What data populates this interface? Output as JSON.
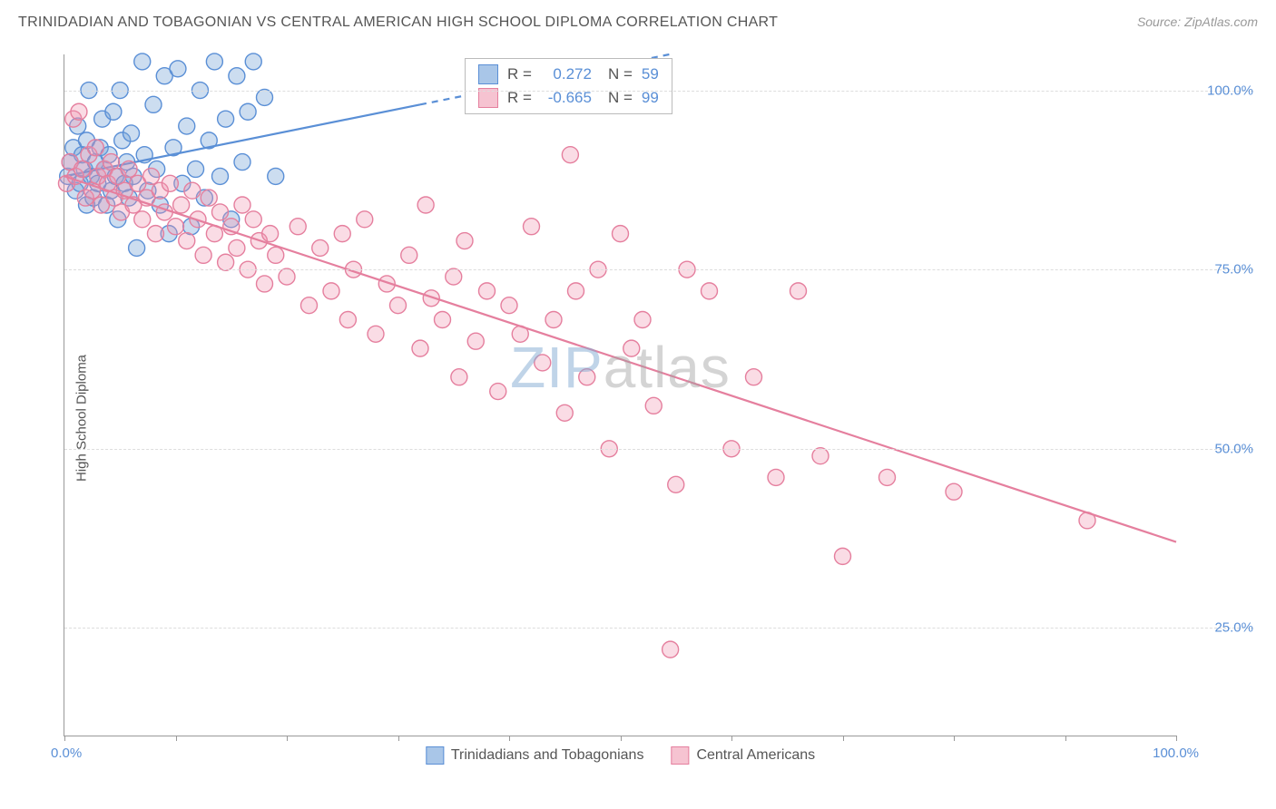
{
  "title": "TRINIDADIAN AND TOBAGONIAN VS CENTRAL AMERICAN HIGH SCHOOL DIPLOMA CORRELATION CHART",
  "source": "Source: ZipAtlas.com",
  "ylabel": "High School Diploma",
  "watermark_zip": "ZIP",
  "watermark_atlas": "atlas",
  "chart": {
    "type": "scatter",
    "background_color": "#ffffff",
    "grid_color": "#dddddd",
    "axis_color": "#999999",
    "xlim": [
      0,
      100
    ],
    "ylim": [
      10,
      105
    ],
    "x_ticks": [
      0,
      10,
      20,
      30,
      40,
      50,
      60,
      70,
      80,
      90,
      100
    ],
    "x_tick_labels": {
      "0": "0.0%",
      "100": "100.0%"
    },
    "y_gridlines": [
      25,
      50,
      75,
      100
    ],
    "y_tick_labels": {
      "25": "25.0%",
      "50": "50.0%",
      "75": "75.0%",
      "100": "100.0%"
    },
    "marker_radius": 9,
    "marker_stroke_width": 1.4,
    "line_width": 2.2,
    "title_fontsize": 16,
    "label_fontsize": 15,
    "tick_label_color": "#5a8fd6",
    "series": [
      {
        "name": "Trinidadians and Tobagonians",
        "fill_color": "rgba(120,165,215,0.38)",
        "stroke_color": "#5a8fd6",
        "swatch_fill": "#a9c6e8",
        "swatch_border": "#5a8fd6",
        "R": "0.272",
        "N": "59",
        "trend": {
          "x1": 0,
          "y1": 88,
          "x2": 32,
          "y2": 98,
          "extrapolate_to_x": 100
        },
        "points": [
          [
            0.3,
            88
          ],
          [
            0.5,
            90
          ],
          [
            0.8,
            92
          ],
          [
            1,
            86
          ],
          [
            1.2,
            95
          ],
          [
            1.4,
            87
          ],
          [
            1.6,
            91
          ],
          [
            1.8,
            89
          ],
          [
            2,
            93
          ],
          [
            2,
            84
          ],
          [
            2.2,
            100
          ],
          [
            2.4,
            88
          ],
          [
            2.6,
            85
          ],
          [
            2.8,
            90
          ],
          [
            3,
            87
          ],
          [
            3.2,
            92
          ],
          [
            3.4,
            96
          ],
          [
            3.6,
            89
          ],
          [
            3.8,
            84
          ],
          [
            4,
            91
          ],
          [
            4.2,
            86
          ],
          [
            4.4,
            97
          ],
          [
            4.6,
            88
          ],
          [
            4.8,
            82
          ],
          [
            5,
            100
          ],
          [
            5.2,
            93
          ],
          [
            5.4,
            87
          ],
          [
            5.6,
            90
          ],
          [
            5.8,
            85
          ],
          [
            6,
            94
          ],
          [
            6.2,
            88
          ],
          [
            6.5,
            78
          ],
          [
            7,
            104
          ],
          [
            7.2,
            91
          ],
          [
            7.5,
            86
          ],
          [
            8,
            98
          ],
          [
            8.3,
            89
          ],
          [
            8.6,
            84
          ],
          [
            9,
            102
          ],
          [
            9.4,
            80
          ],
          [
            9.8,
            92
          ],
          [
            10.2,
            103
          ],
          [
            10.6,
            87
          ],
          [
            11,
            95
          ],
          [
            11.4,
            81
          ],
          [
            11.8,
            89
          ],
          [
            12.2,
            100
          ],
          [
            12.6,
            85
          ],
          [
            13,
            93
          ],
          [
            13.5,
            104
          ],
          [
            14,
            88
          ],
          [
            14.5,
            96
          ],
          [
            15,
            82
          ],
          [
            15.5,
            102
          ],
          [
            16,
            90
          ],
          [
            16.5,
            97
          ],
          [
            17,
            104
          ],
          [
            18,
            99
          ],
          [
            19,
            88
          ]
        ]
      },
      {
        "name": "Central Americans",
        "fill_color": "rgba(240,150,175,0.33)",
        "stroke_color": "#e57f9e",
        "swatch_fill": "#f6c3d1",
        "swatch_border": "#e57f9e",
        "R": "-0.665",
        "N": "99",
        "trend": {
          "x1": 0,
          "y1": 88,
          "x2": 100,
          "y2": 37
        },
        "points": [
          [
            0.2,
            87
          ],
          [
            0.5,
            90
          ],
          [
            0.8,
            96
          ],
          [
            1,
            88
          ],
          [
            1.3,
            97
          ],
          [
            1.6,
            89
          ],
          [
            1.9,
            85
          ],
          [
            2.2,
            91
          ],
          [
            2.5,
            86
          ],
          [
            2.8,
            92
          ],
          [
            3,
            88
          ],
          [
            3.3,
            84
          ],
          [
            3.6,
            89
          ],
          [
            3.9,
            87
          ],
          [
            4.2,
            90
          ],
          [
            4.5,
            85
          ],
          [
            4.8,
            88
          ],
          [
            5.1,
            83
          ],
          [
            5.4,
            86
          ],
          [
            5.8,
            89
          ],
          [
            6.2,
            84
          ],
          [
            6.6,
            87
          ],
          [
            7,
            82
          ],
          [
            7.4,
            85
          ],
          [
            7.8,
            88
          ],
          [
            8.2,
            80
          ],
          [
            8.6,
            86
          ],
          [
            9,
            83
          ],
          [
            9.5,
            87
          ],
          [
            10,
            81
          ],
          [
            10.5,
            84
          ],
          [
            11,
            79
          ],
          [
            11.5,
            86
          ],
          [
            12,
            82
          ],
          [
            12.5,
            77
          ],
          [
            13,
            85
          ],
          [
            13.5,
            80
          ],
          [
            14,
            83
          ],
          [
            14.5,
            76
          ],
          [
            15,
            81
          ],
          [
            15.5,
            78
          ],
          [
            16,
            84
          ],
          [
            16.5,
            75
          ],
          [
            17,
            82
          ],
          [
            17.5,
            79
          ],
          [
            18,
            73
          ],
          [
            18.5,
            80
          ],
          [
            19,
            77
          ],
          [
            20,
            74
          ],
          [
            21,
            81
          ],
          [
            22,
            70
          ],
          [
            23,
            78
          ],
          [
            24,
            72
          ],
          [
            25,
            80
          ],
          [
            25.5,
            68
          ],
          [
            26,
            75
          ],
          [
            27,
            82
          ],
          [
            28,
            66
          ],
          [
            29,
            73
          ],
          [
            30,
            70
          ],
          [
            31,
            77
          ],
          [
            32,
            64
          ],
          [
            32.5,
            84
          ],
          [
            33,
            71
          ],
          [
            34,
            68
          ],
          [
            35,
            74
          ],
          [
            35.5,
            60
          ],
          [
            36,
            79
          ],
          [
            37,
            65
          ],
          [
            38,
            72
          ],
          [
            39,
            58
          ],
          [
            40,
            70
          ],
          [
            41,
            66
          ],
          [
            42,
            81
          ],
          [
            43,
            62
          ],
          [
            44,
            68
          ],
          [
            45,
            55
          ],
          [
            45.5,
            91
          ],
          [
            46,
            72
          ],
          [
            47,
            60
          ],
          [
            48,
            75
          ],
          [
            49,
            50
          ],
          [
            50,
            80
          ],
          [
            51,
            64
          ],
          [
            52,
            68
          ],
          [
            53,
            56
          ],
          [
            54.5,
            22
          ],
          [
            55,
            45
          ],
          [
            56,
            75
          ],
          [
            58,
            72
          ],
          [
            60,
            50
          ],
          [
            62,
            60
          ],
          [
            64,
            46
          ],
          [
            66,
            72
          ],
          [
            68,
            49
          ],
          [
            70,
            35
          ],
          [
            74,
            46
          ],
          [
            80,
            44
          ],
          [
            92,
            40
          ]
        ]
      }
    ]
  },
  "stats_legend": {
    "R_label": "R =",
    "N_label": "N ="
  },
  "bottom_legend": [
    {
      "label": "Trinidadians and Tobagonians",
      "swatch_fill": "#a9c6e8",
      "swatch_border": "#5a8fd6"
    },
    {
      "label": "Central Americans",
      "swatch_fill": "#f6c3d1",
      "swatch_border": "#e57f9e"
    }
  ]
}
